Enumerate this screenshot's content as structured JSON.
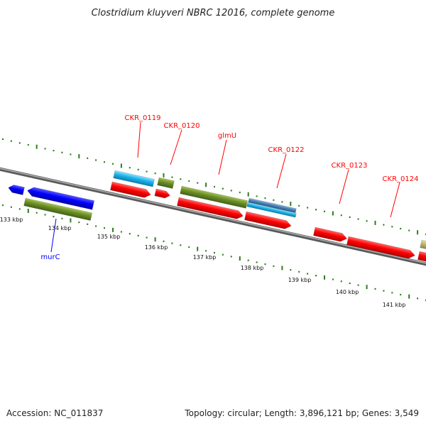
{
  "title": "Clostridium kluyveri NBRC 12016, complete genome",
  "footer": {
    "accession": "Accession: NC_011837",
    "summary": "Topology: circular; Length: 3,896,121 bp; Genes: 3,549"
  },
  "colors": {
    "backbone": "#8a8a8a",
    "tick": "#2e7d1e",
    "cds": "#ff0000",
    "trna": "#1bb3ea",
    "gene": "#6b8e23",
    "highlight": "#0000ff",
    "steel": "#4682b4",
    "label_red": "#ff0000",
    "label_blue": "#0000ff"
  },
  "scale_labels": [
    "133 kbp",
    "134 kbp",
    "135 kbp",
    "136 kbp",
    "137 kbp",
    "138 kbp",
    "139 kbp",
    "140 kbp",
    "141 kbp"
  ],
  "gene_labels": [
    {
      "text": "CKR_0119",
      "color": "red"
    },
    {
      "text": "CKR_0120",
      "color": "red"
    },
    {
      "text": "glmU",
      "color": "red"
    },
    {
      "text": "CKR_0122",
      "color": "red"
    },
    {
      "text": "CKR_0123",
      "color": "red"
    },
    {
      "text": "CKR_0124",
      "color": "red"
    },
    {
      "text": "murC",
      "color": "blue"
    }
  ]
}
